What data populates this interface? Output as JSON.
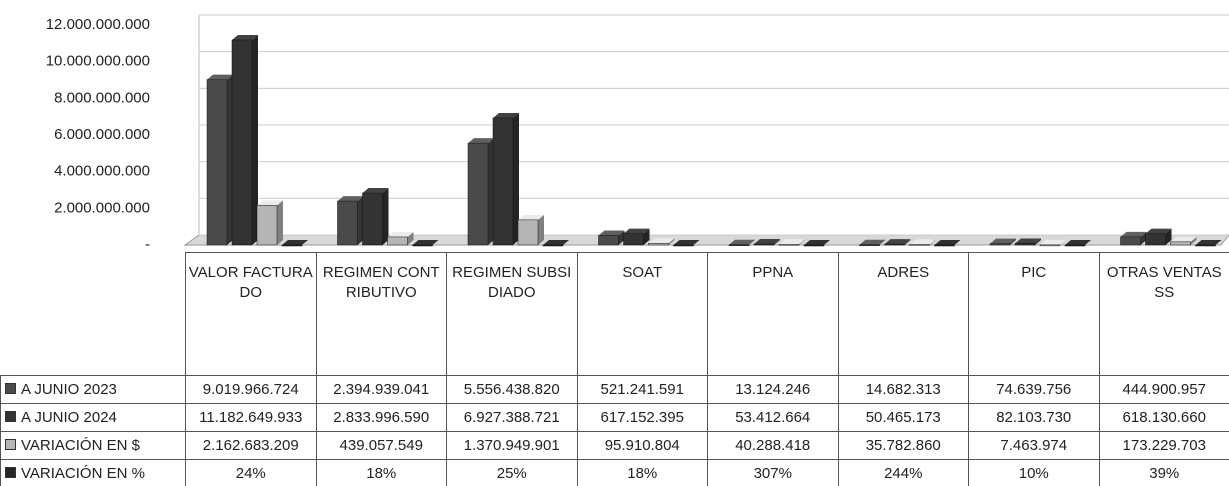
{
  "chart_data": {
    "type": "bar",
    "categories": [
      "VALOR FACTURADO",
      "REGIMEN CONTRIBUTIVO",
      "REGIMEN SUBSIDIADO",
      "SOAT",
      "PPNA",
      "ADRES",
      "PIC",
      "OTRAS VENTAS SS"
    ],
    "series": [
      {
        "name": "A JUNIO 2023",
        "color": "#4a4a4a",
        "values": [
          9019966724,
          2394939041,
          5556438820,
          521241591,
          13124246,
          14682313,
          74639756,
          444900957
        ],
        "value_labels": [
          "9.019.966.724",
          "2.394.939.041",
          "5.556.438.820",
          "521.241.591",
          "13.124.246",
          "14.682.313",
          "74.639.756",
          "444.900.957"
        ]
      },
      {
        "name": "A JUNIO 2024",
        "color": "#333333",
        "values": [
          11182649933,
          2833996590,
          6927388721,
          617152395,
          53412664,
          50465173,
          82103730,
          618130660
        ],
        "value_labels": [
          "11.182.649.933",
          "2.833.996.590",
          "6.927.388.721",
          "617.152.395",
          "53.412.664",
          "50.465.173",
          "82.103.730",
          "618.130.660"
        ]
      },
      {
        "name": "VARIACIÓN EN $",
        "color": "#b5b5b5",
        "values": [
          2162683209,
          439057549,
          1370949901,
          95910804,
          40288418,
          35782860,
          7463974,
          173229703
        ],
        "value_labels": [
          "2.162.683.209",
          "439.057.549",
          "1.370.949.901",
          "95.910.804",
          "40.288.418",
          "35.782.860",
          "7.463.974",
          "173.229.703"
        ]
      },
      {
        "name": "VARIACIÓN EN %",
        "color": "#262626",
        "values": [
          24,
          18,
          25,
          18,
          307,
          244,
          10,
          39
        ],
        "value_labels": [
          "24%",
          "18%",
          "25%",
          "18%",
          "307%",
          "244%",
          "10%",
          "39%"
        ]
      }
    ],
    "ylim": [
      0,
      12000000000
    ],
    "yticks": [
      {
        "value": 0,
        "label": "-"
      },
      {
        "value": 2000000000,
        "label": "2.000.000.000"
      },
      {
        "value": 4000000000,
        "label": "4.000.000.000"
      },
      {
        "value": 6000000000,
        "label": "6.000.000.000"
      },
      {
        "value": 8000000000,
        "label": "8.000.000.000"
      },
      {
        "value": 10000000000,
        "label": "10.000.000.000"
      },
      {
        "value": 12000000000,
        "label": "12.000.000.000"
      }
    ],
    "grid": true
  }
}
